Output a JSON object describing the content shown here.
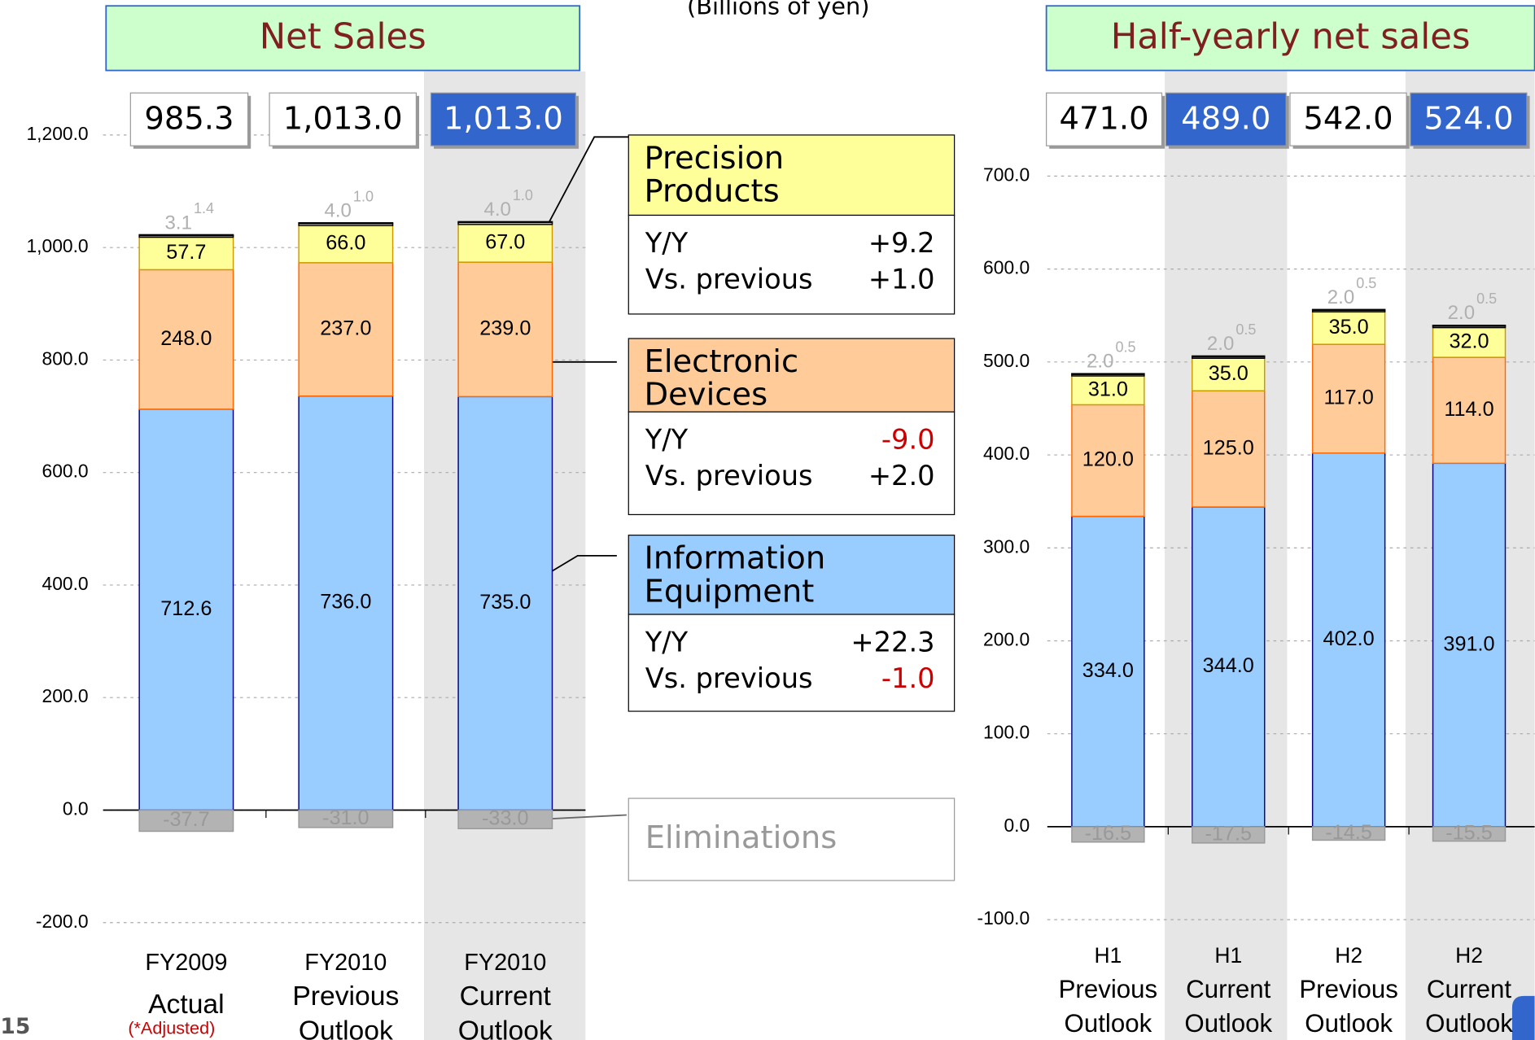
{
  "subtitle": "(Billions of yen)",
  "page_number": "15",
  "chart_data": [
    {
      "type": "stacked_bar",
      "title": "Net Sales",
      "categories": [
        [
          "FY2009",
          "Actual"
        ],
        [
          "FY2010",
          "Previous",
          "Outlook"
        ],
        [
          "FY2010",
          "Current",
          "Outlook"
        ]
      ],
      "category_note": {
        "index": 0,
        "text": "(*Adjusted)",
        "color": "#cc0000"
      },
      "totals": [
        985.3,
        1013.0,
        1013.0
      ],
      "total_labels": [
        "985.3",
        "1,013.0",
        "1,013.0"
      ],
      "highlight": [
        false,
        false,
        true
      ],
      "ylim": [
        -200,
        1200
      ],
      "yticks": [
        {
          "value": -200,
          "label": "-200.0"
        },
        {
          "value": 0,
          "label": "0.0"
        },
        {
          "value": 200,
          "label": "200.0"
        },
        {
          "value": 400,
          "label": "400.0"
        },
        {
          "value": 600,
          "label": "600.0"
        },
        {
          "value": 800,
          "label": "800.0"
        },
        {
          "value": 1000,
          "label": "1,000.0"
        },
        {
          "value": 1200,
          "label": "1,200.0"
        }
      ],
      "grid": true,
      "yy_label": "Y/Y",
      "vs_label": "Vs. previous",
      "series": [
        {
          "name": "Information Equipment",
          "color": "#99ccff",
          "stroke": "#000080",
          "values": [
            712.6,
            736,
            735
          ],
          "value_labels": [
            "712.6",
            "736.0",
            "735.0"
          ],
          "yy": "+22.3",
          "vs_previous": "-1.0"
        },
        {
          "name": "Electronic Devices",
          "color": "#ffcc99",
          "stroke": "#ff6600",
          "values": [
            248,
            237,
            239
          ],
          "value_labels": [
            "248.0",
            "237.0",
            "239.0"
          ],
          "yy": "-9.0",
          "vs_previous": "+2.0"
        },
        {
          "name": "Precision Products",
          "color": "#ffff99",
          "stroke": "#cc9900",
          "values": [
            57.7,
            66,
            67
          ],
          "value_labels": [
            "57.7",
            "66.0",
            "67.0"
          ],
          "yy": "+9.2",
          "vs_previous": "+1.0"
        },
        {
          "color": "#ffffff",
          "stroke": "#000000",
          "label_color": "#b0b0b0",
          "values": [
            3.1,
            4,
            4
          ],
          "value_labels": [
            "3.1",
            "4.0",
            "4.0"
          ]
        },
        {
          "color": "#000000",
          "stroke": "#000000",
          "label_color": "#b0b0b0",
          "values": [
            1.4,
            1,
            1
          ],
          "value_labels": [
            "1.4",
            "1.0",
            "1.0"
          ]
        },
        {
          "name": "Eliminations",
          "color": "#b3b3b3",
          "stroke": "#999999",
          "label_color": "#999999",
          "values": [
            -37.7,
            -31,
            -33
          ],
          "value_labels": [
            "-37.7",
            "-31.0",
            "-33.0"
          ]
        }
      ]
    },
    {
      "type": "stacked_bar",
      "title": "Half-yearly net sales",
      "categories": [
        [
          "H1",
          "Previous",
          "Outlook"
        ],
        [
          "H1",
          "Current",
          "Outlook"
        ],
        [
          "H2",
          "Previous",
          "Outlook"
        ],
        [
          "H2",
          "Current",
          "Outlook"
        ]
      ],
      "totals": [
        471.0,
        489.0,
        542.0,
        524.0
      ],
      "total_labels": [
        "471.0",
        "489.0",
        "542.0",
        "524.0"
      ],
      "highlight": [
        false,
        true,
        false,
        true
      ],
      "ylim": [
        -100,
        700
      ],
      "yticks": [
        {
          "value": -100,
          "label": "-100.0"
        },
        {
          "value": 0,
          "label": "0.0"
        },
        {
          "value": 100,
          "label": "100.0"
        },
        {
          "value": 200,
          "label": "200.0"
        },
        {
          "value": 300,
          "label": "300.0"
        },
        {
          "value": 400,
          "label": "400.0"
        },
        {
          "value": 500,
          "label": "500.0"
        },
        {
          "value": 600,
          "label": "600.0"
        },
        {
          "value": 700,
          "label": "700.0"
        }
      ],
      "grid": true,
      "series": [
        {
          "color": "#99ccff",
          "stroke": "#000080",
          "values": [
            334,
            344,
            402,
            391
          ],
          "value_labels": [
            "334.0",
            "344.0",
            "402.0",
            "391.0"
          ]
        },
        {
          "color": "#ffcc99",
          "stroke": "#ff6600",
          "values": [
            120,
            125,
            117,
            114
          ],
          "value_labels": [
            "120.0",
            "125.0",
            "117.0",
            "114.0"
          ]
        },
        {
          "color": "#ffff99",
          "stroke": "#cc9900",
          "values": [
            31,
            35,
            35,
            32
          ],
          "value_labels": [
            "31.0",
            "35.0",
            "35.0",
            "32.0"
          ]
        },
        {
          "color": "#ffffff",
          "stroke": "#000000",
          "label_color": "#b0b0b0",
          "values": [
            2,
            2,
            2,
            2
          ],
          "value_labels": [
            "2.0",
            "2.0",
            "2.0",
            "2.0"
          ]
        },
        {
          "color": "#000000",
          "stroke": "#000000",
          "label_color": "#b0b0b0",
          "values": [
            0.5,
            0.5,
            0.5,
            0.5
          ]
        },
        {
          "color": "#b3b3b3",
          "stroke": "#999999",
          "label_color": "#999999",
          "values": [
            -16.5,
            -17.5,
            -14.5,
            -15.5
          ],
          "value_labels": [
            "-16.5",
            "-17.5",
            "-14.5",
            "-15.5"
          ]
        }
      ]
    }
  ]
}
